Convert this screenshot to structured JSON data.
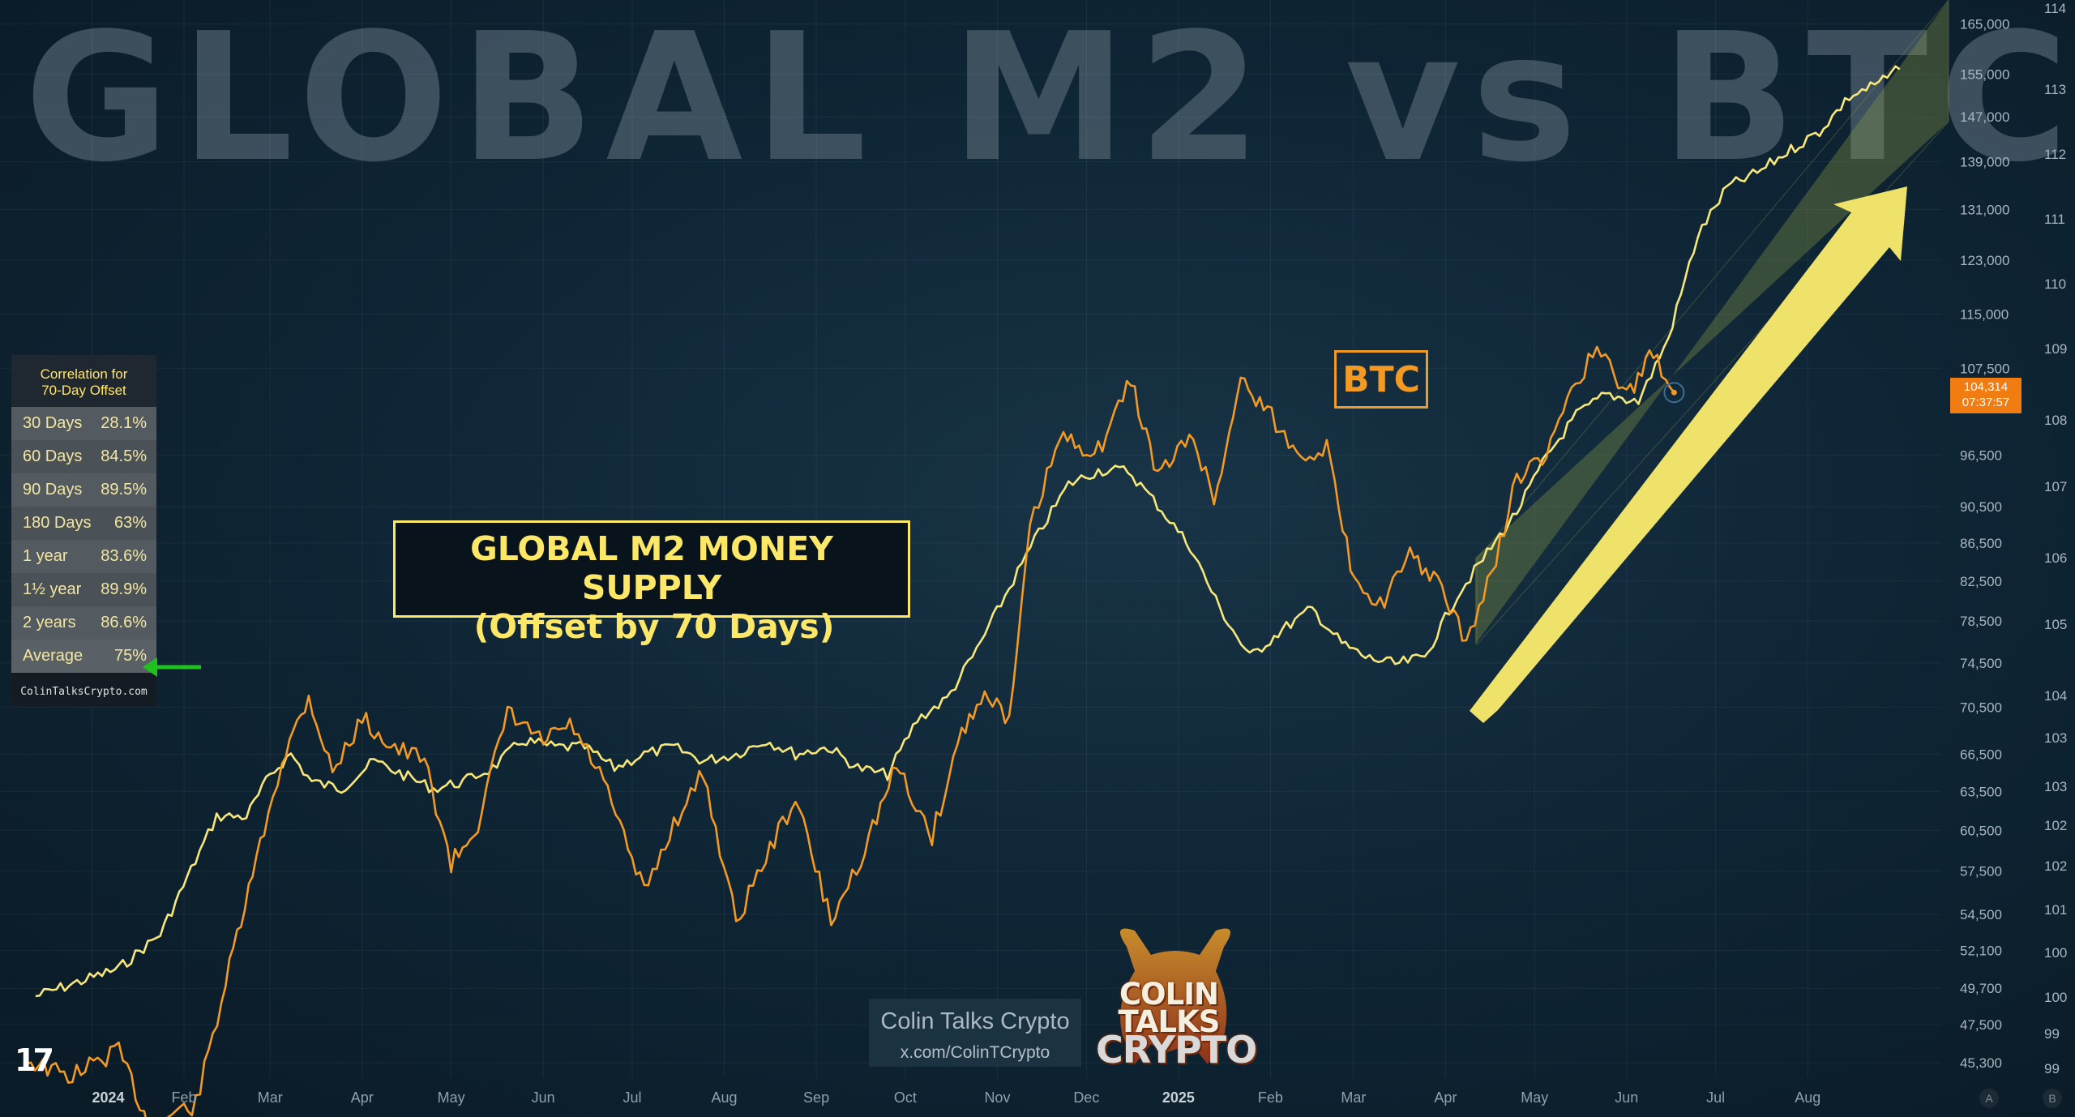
{
  "watermark": "GLOBAL M2 vs BTC",
  "chart_data": {
    "type": "line",
    "series": [
      {
        "name": "GLOBAL M2 MONEY SUPPLY (Offset by 70 Days)",
        "color": "#f7e77a",
        "points": [
          [
            "2023-12-13",
            100.0
          ],
          [
            "2023-12-27",
            100.2
          ],
          [
            "2024-01-10",
            100.4
          ],
          [
            "2024-01-24",
            100.9
          ],
          [
            "2024-02-02",
            101.7
          ],
          [
            "2024-02-12",
            102.6
          ],
          [
            "2024-02-22",
            102.6
          ],
          [
            "2024-03-01",
            103.2
          ],
          [
            "2024-03-08",
            103.5
          ],
          [
            "2024-03-15",
            103.1
          ],
          [
            "2024-03-25",
            103.0
          ],
          [
            "2024-04-05",
            103.4
          ],
          [
            "2024-04-15",
            103.2
          ],
          [
            "2024-04-25",
            103.0
          ],
          [
            "2024-05-05",
            103.1
          ],
          [
            "2024-05-15",
            103.3
          ],
          [
            "2024-05-25",
            103.7
          ],
          [
            "2024-06-05",
            103.6
          ],
          [
            "2024-06-15",
            103.6
          ],
          [
            "2024-06-25",
            103.3
          ],
          [
            "2024-07-05",
            103.5
          ],
          [
            "2024-07-15",
            103.6
          ],
          [
            "2024-07-25",
            103.4
          ],
          [
            "2024-08-05",
            103.5
          ],
          [
            "2024-08-15",
            103.7
          ],
          [
            "2024-08-25",
            103.5
          ],
          [
            "2024-09-05",
            103.6
          ],
          [
            "2024-09-15",
            103.3
          ],
          [
            "2024-09-25",
            103.2
          ],
          [
            "2024-10-05",
            104.0
          ],
          [
            "2024-10-15",
            104.3
          ],
          [
            "2024-10-25",
            105.0
          ],
          [
            "2024-11-05",
            105.9
          ],
          [
            "2024-11-15",
            106.7
          ],
          [
            "2024-11-25",
            107.4
          ],
          [
            "2024-12-05",
            107.6
          ],
          [
            "2024-12-15",
            107.6
          ],
          [
            "2024-12-25",
            107.1
          ],
          [
            "2025-01-05",
            106.5
          ],
          [
            "2025-01-15",
            105.6
          ],
          [
            "2025-01-25",
            104.9
          ],
          [
            "2025-02-05",
            105.3
          ],
          [
            "2025-02-15",
            105.6
          ],
          [
            "2025-02-25",
            105.1
          ],
          [
            "2025-03-05",
            104.9
          ],
          [
            "2025-03-15",
            104.8
          ],
          [
            "2025-03-25",
            104.9
          ],
          [
            "2025-04-05",
            105.8
          ],
          [
            "2025-04-15",
            106.4
          ],
          [
            "2025-04-25",
            107.0
          ],
          [
            "2025-05-05",
            107.8
          ],
          [
            "2025-05-15",
            108.4
          ],
          [
            "2025-05-25",
            108.7
          ],
          [
            "2025-06-05",
            108.6
          ],
          [
            "2025-06-15",
            109.5
          ],
          [
            "2025-06-25",
            111.0
          ],
          [
            "2025-07-05",
            111.7
          ],
          [
            "2025-07-15",
            111.9
          ],
          [
            "2025-07-25",
            112.2
          ],
          [
            "2025-08-05",
            112.5
          ],
          [
            "2025-08-15",
            113.0
          ],
          [
            "2025-08-25",
            113.2
          ],
          [
            "2025-09-01",
            113.4
          ]
        ]
      },
      {
        "name": "BTC",
        "color": "#f39a24",
        "points": [
          [
            "2023-12-10",
            45500
          ],
          [
            "2023-12-24",
            44500
          ],
          [
            "2024-01-10",
            46000
          ],
          [
            "2024-01-20",
            42000
          ],
          [
            "2024-02-05",
            43000
          ],
          [
            "2024-02-15",
            50000
          ],
          [
            "2024-02-28",
            60500
          ],
          [
            "2024-03-05",
            66000
          ],
          [
            "2024-03-14",
            71500
          ],
          [
            "2024-03-22",
            65000
          ],
          [
            "2024-04-01",
            69500
          ],
          [
            "2024-04-12",
            67000
          ],
          [
            "2024-04-22",
            66000
          ],
          [
            "2024-05-01",
            58000
          ],
          [
            "2024-05-10",
            61000
          ],
          [
            "2024-05-20",
            70000
          ],
          [
            "2024-06-01",
            67500
          ],
          [
            "2024-06-10",
            69000
          ],
          [
            "2024-06-20",
            65000
          ],
          [
            "2024-07-05",
            56000
          ],
          [
            "2024-07-15",
            61000
          ],
          [
            "2024-07-25",
            65000
          ],
          [
            "2024-08-05",
            54000
          ],
          [
            "2024-08-15",
            58500
          ],
          [
            "2024-08-25",
            63000
          ],
          [
            "2024-09-06",
            54000
          ],
          [
            "2024-09-16",
            58500
          ],
          [
            "2024-09-28",
            65500
          ],
          [
            "2024-10-10",
            60000
          ],
          [
            "2024-10-20",
            68500
          ],
          [
            "2024-10-29",
            72000
          ],
          [
            "2024-11-05",
            69000
          ],
          [
            "2024-11-12",
            88000
          ],
          [
            "2024-11-22",
            98500
          ],
          [
            "2024-12-05",
            97000
          ],
          [
            "2024-12-16",
            106000
          ],
          [
            "2024-12-25",
            94000
          ],
          [
            "2025-01-06",
            99000
          ],
          [
            "2025-01-13",
            91000
          ],
          [
            "2025-01-22",
            106000
          ],
          [
            "2025-01-31",
            102000
          ],
          [
            "2025-02-10",
            96500
          ],
          [
            "2025-02-20",
            97500
          ],
          [
            "2025-02-28",
            84000
          ],
          [
            "2025-03-10",
            80000
          ],
          [
            "2025-03-20",
            85000
          ],
          [
            "2025-03-28",
            83000
          ],
          [
            "2025-04-08",
            76500
          ],
          [
            "2025-04-18",
            84500
          ],
          [
            "2025-04-25",
            94000
          ],
          [
            "2025-05-05",
            96000
          ],
          [
            "2025-05-12",
            104000
          ],
          [
            "2025-05-22",
            110000
          ],
          [
            "2025-06-01",
            104000
          ],
          [
            "2025-06-10",
            109500
          ],
          [
            "2025-06-17",
            104314
          ]
        ]
      }
    ],
    "x_ticks": [
      "2024",
      "Feb",
      "Mar",
      "Apr",
      "May",
      "Jun",
      "Jul",
      "Aug",
      "Sep",
      "Oct",
      "Nov",
      "Dec",
      "2025",
      "Feb",
      "Mar",
      "Apr",
      "May",
      "Jun",
      "Jul",
      "Aug"
    ],
    "x_range": [
      "2023-12-01",
      "2025-09-15"
    ],
    "left_price_ticks": [
      "165,000",
      "155,000",
      "147,000",
      "139,000",
      "131,000",
      "123,000",
      "115,000",
      "107,500",
      "96,500",
      "90,500",
      "86,500",
      "82,500",
      "78,500",
      "74,500",
      "70,500",
      "66,500",
      "63,500",
      "60,500",
      "57,500",
      "54,500",
      "52,100",
      "49,700",
      "47,500",
      "45,300"
    ],
    "m2_ticks": [
      "114",
      "113",
      "112",
      "111",
      "110",
      "109",
      "108",
      "107",
      "106",
      "105",
      "104",
      "103",
      "103",
      "102",
      "102",
      "101",
      "100",
      "100",
      "99",
      "99"
    ],
    "btc_last_price": "104,314",
    "countdown": "07:37:57",
    "channel": "ascending",
    "scale": "log",
    "grid": true
  },
  "annotations": {
    "m2_label_line1": "GLOBAL M2 MONEY SUPPLY",
    "m2_label_line2": "(Offset by 70 Days)",
    "btc_label": "BTC"
  },
  "correlation_table": {
    "title_line1": "Correlation for",
    "title_line2": "70-Day Offset",
    "rows": [
      {
        "period": "30 Days",
        "value": "28.1%"
      },
      {
        "period": "60 Days",
        "value": "84.5%"
      },
      {
        "period": "90 Days",
        "value": "89.5%"
      },
      {
        "period": "180 Days",
        "value": "63%"
      },
      {
        "period": "1 year",
        "value": "83.6%"
      },
      {
        "period": "1½ year",
        "value": "89.9%"
      },
      {
        "period": "2 years",
        "value": "86.6%"
      },
      {
        "period": "Average",
        "value": "75%"
      }
    ],
    "footer": "ColinTalksCrypto.com"
  },
  "branding": {
    "name": "Colin Talks Crypto",
    "url": "x.com/ColinTCrypto",
    "logo_line1": "COLIN TALKS",
    "logo_line2": "CRYPTO"
  },
  "tv_logo": "17",
  "axis_buttons": [
    "A",
    "B"
  ],
  "colors": {
    "m2": "#f7e77a",
    "btc": "#f39a24",
    "channel": "#6b7a3a",
    "arrow": "#eee26a",
    "price_tag": "#f07c12"
  }
}
